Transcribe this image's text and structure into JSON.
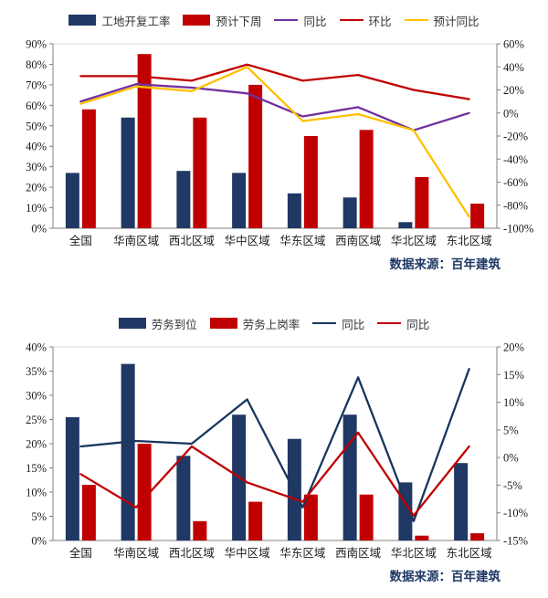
{
  "source_label": "数据来源：百年建筑",
  "chart_data": [
    {
      "type": "bar+line",
      "title": "",
      "categories": [
        "全国",
        "华南区域",
        "西北区域",
        "华中区域",
        "华东区域",
        "西南区域",
        "华北区域",
        "东北区域"
      ],
      "left_axis": {
        "min": 0,
        "max": 90,
        "ticks": [
          "0%",
          "10%",
          "20%",
          "30%",
          "40%",
          "50%",
          "60%",
          "70%",
          "80%",
          "90%"
        ]
      },
      "right_axis": {
        "min": -100,
        "max": 60,
        "ticks": [
          "-100%",
          "-80%",
          "-60%",
          "-40%",
          "-20%",
          "0%",
          "20%",
          "40%",
          "60%"
        ]
      },
      "bar_series": [
        {
          "name": "工地开复工率",
          "color": "#1f3864",
          "axis": "left",
          "values": [
            27,
            54,
            28,
            27,
            17,
            15,
            3,
            0
          ]
        },
        {
          "name": "预计下周",
          "color": "#c00000",
          "axis": "left",
          "values": [
            58,
            85,
            54,
            70,
            45,
            48,
            25,
            12
          ]
        }
      ],
      "line_series": [
        {
          "name": "同比",
          "color": "#7030a0",
          "axis": "right",
          "values": [
            10,
            25,
            22,
            17,
            -3,
            5,
            -15,
            0
          ]
        },
        {
          "name": "环比",
          "color": "#c00000",
          "axis": "right",
          "values": [
            32,
            32,
            28,
            42,
            28,
            33,
            20,
            12
          ]
        },
        {
          "name": "预计同比",
          "color": "#ffc000",
          "axis": "right",
          "values": [
            8,
            23,
            19,
            40,
            -7,
            -1,
            -15,
            -90
          ]
        }
      ],
      "source": "数据来源：百年建筑",
      "legend_position": "top",
      "grid": false
    },
    {
      "type": "bar+line",
      "title": "",
      "categories": [
        "全国",
        "华南区域",
        "西北区域",
        "华中区域",
        "华东区域",
        "西南区域",
        "华北区域",
        "东北区域"
      ],
      "left_axis": {
        "min": 0,
        "max": 40,
        "ticks": [
          "0%",
          "5%",
          "10%",
          "15%",
          "20%",
          "25%",
          "30%",
          "35%",
          "40%"
        ]
      },
      "right_axis": {
        "min": -15,
        "max": 20,
        "ticks": [
          "-15%",
          "-10%",
          "-5%",
          "0%",
          "5%",
          "10%",
          "15%",
          "20%"
        ]
      },
      "bar_series": [
        {
          "name": "劳务到位",
          "color": "#1f3864",
          "axis": "left",
          "values": [
            25.5,
            36.5,
            17.5,
            26,
            21,
            26,
            12,
            16
          ]
        },
        {
          "name": "劳务上岗率",
          "color": "#c00000",
          "axis": "left",
          "values": [
            11.5,
            20,
            4,
            8,
            9.5,
            9.5,
            1,
            1.5
          ]
        }
      ],
      "line_series": [
        {
          "name": "同比",
          "color": "#17375e",
          "axis": "right",
          "values": [
            2,
            3,
            2.5,
            10.5,
            -9,
            14.5,
            -11.5,
            16
          ]
        },
        {
          "name": "同比",
          "color": "#c00000",
          "axis": "right",
          "values": [
            -3,
            -9,
            2,
            -4.5,
            -8,
            4.5,
            -10.5,
            2
          ]
        }
      ],
      "source": "数据来源：百年建筑",
      "legend_position": "top",
      "grid": false
    }
  ]
}
